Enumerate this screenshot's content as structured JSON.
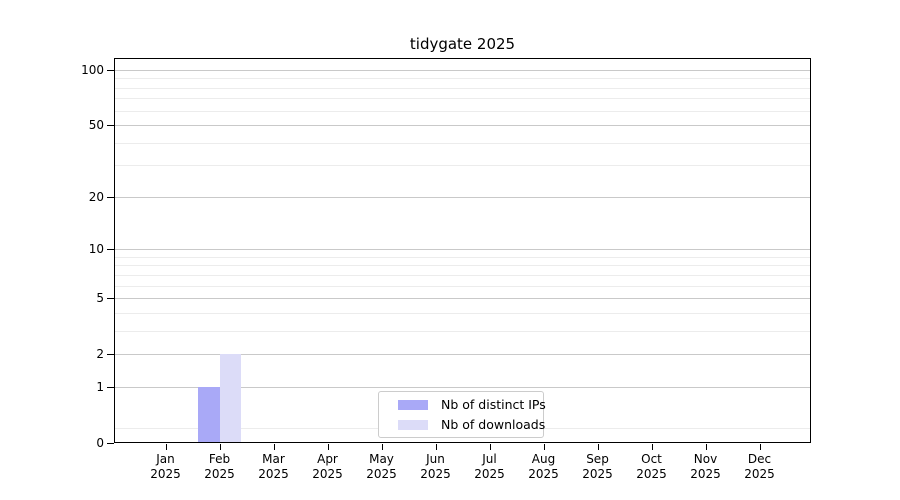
{
  "title": "tidygate 2025",
  "chart_data": {
    "type": "bar",
    "title": "tidygate 2025",
    "categories": [
      "Jan",
      "Feb",
      "Mar",
      "Apr",
      "May",
      "Jun",
      "Jul",
      "Aug",
      "Sep",
      "Oct",
      "Nov",
      "Dec"
    ],
    "category_year": "2025",
    "series": [
      {
        "name": "Nb of distinct IPs",
        "color": "#a9a9f7",
        "values": [
          0,
          1,
          0,
          0,
          0,
          0,
          0,
          0,
          0,
          0,
          0,
          0
        ]
      },
      {
        "name": "Nb of downloads",
        "color": "#dcdcf8",
        "values": [
          0,
          2,
          0,
          0,
          0,
          0,
          0,
          0,
          0,
          0,
          0,
          0
        ]
      }
    ],
    "y_axis": {
      "scale": "log1p",
      "major_ticks": [
        100,
        50,
        20,
        10,
        5,
        2,
        1,
        0
      ],
      "minor_ticks": [
        0.2,
        3,
        4,
        6,
        7,
        8,
        9,
        30,
        40,
        60,
        70,
        80,
        90
      ],
      "ylim": [
        0,
        117
      ]
    },
    "xlabel": "",
    "ylabel": "",
    "grid": true,
    "legend_position": "lower center"
  },
  "legend": {
    "items": [
      {
        "label": "Nb of distinct IPs"
      },
      {
        "label": "Nb of downloads"
      }
    ]
  },
  "colors": {
    "bar_distinct_ips": "#a9a9f7",
    "bar_downloads": "#dcdcf8",
    "grid_major": "#c9c9c9",
    "grid_minor": "#ececec",
    "axis": "#000000",
    "legend_border": "#cccccc"
  }
}
